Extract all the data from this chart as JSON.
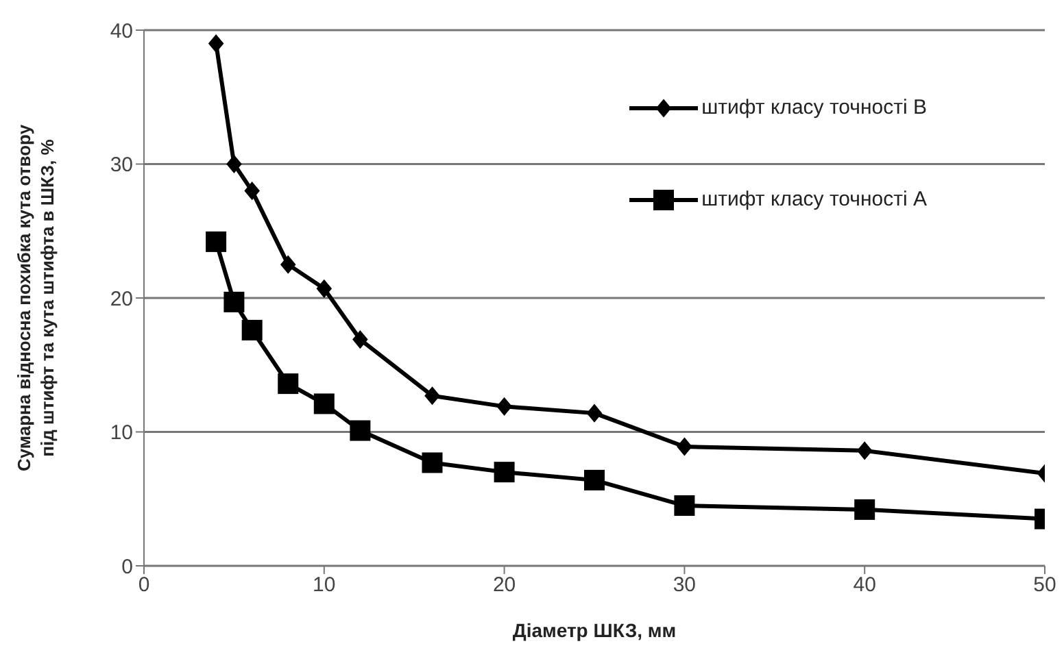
{
  "chart_data": {
    "type": "line",
    "xlabel": "Діаметр ШКЗ, мм",
    "ylabel": "Сумарна відносна похибка кута отвору\nпід штифт та кута штифта в ШКЗ, %",
    "x": [
      4,
      5,
      6,
      8,
      10,
      12,
      16,
      20,
      25,
      30,
      40,
      50
    ],
    "series": [
      {
        "name": "штифт класу точності В",
        "color": "#000000",
        "marker": "diamond",
        "values": [
          39,
          30,
          28,
          22.5,
          20.7,
          16.9,
          12.7,
          11.9,
          11.4,
          8.9,
          8.6,
          6.9
        ]
      },
      {
        "name": "штифт класу точності А",
        "color": "#000000",
        "marker": "square",
        "values": [
          24.2,
          19.7,
          17.6,
          13.6,
          12.1,
          10.1,
          7.7,
          7,
          6.4,
          4.5,
          4.2,
          3.5
        ]
      }
    ],
    "xlim": [
      0,
      50
    ],
    "xticks": [
      0,
      10,
      20,
      30,
      40,
      50
    ],
    "ylim": [
      0,
      40
    ],
    "yticks": [
      0,
      10,
      20,
      30,
      40
    ],
    "grid": "y",
    "legend": "top right",
    "line_style": "solid"
  }
}
